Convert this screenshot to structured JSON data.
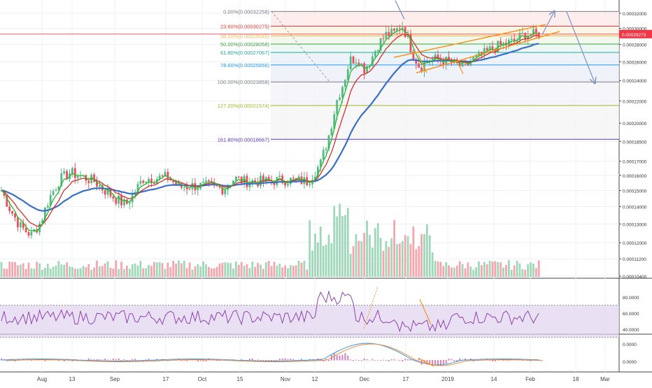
{
  "chart_data": {
    "type": "candlestick",
    "ylim": [
      0.000104,
      0.000322
    ],
    "y_scale": "log",
    "y_ticks": [
      "0.00032000",
      "0.00030000",
      "0.00028000",
      "0.00026000",
      "0.00024000",
      "0.00022000",
      "0.00020000",
      "0.00018500",
      "0.00017000",
      "0.00016000",
      "0.00015000",
      "0.00014000",
      "0.00013000",
      "0.00012000",
      "0.00011200",
      "0.00010400"
    ],
    "x_ticks": [
      "Aug",
      "13",
      "Sep",
      "17",
      "Oct",
      "15",
      "Nov",
      "12",
      "Dec",
      "17",
      "2019",
      "14",
      "Feb",
      "18",
      "Mar"
    ],
    "price_label": "0.00029273",
    "last_price": 0.00029273,
    "fibonacci": [
      {
        "label": "0.00%(0.00032258)",
        "value": 0.00032258,
        "color": "#787b86"
      },
      {
        "label": "23.60%(0.00030275)",
        "value": 0.00030275,
        "color": "#e53935"
      },
      {
        "label": "38.20%(0.00029045)",
        "value": 0.00029045,
        "color": "#f2b94a"
      },
      {
        "label": "50.00%(0.00028058)",
        "value": 0.00028058,
        "color": "#43a047"
      },
      {
        "label": "61.80%(0.00027067)",
        "value": 0.00027067,
        "color": "#26a69a"
      },
      {
        "label": "78.60%(0.00025656)",
        "value": 0.00025656,
        "color": "#2196f3"
      },
      {
        "label": "100.00%(0.00023858)",
        "value": 0.00023858,
        "color": "#787b86"
      },
      {
        "label": "127.20%(0.00021574)",
        "value": 0.00021574,
        "color": "#9cba27"
      },
      {
        "label": "161.80%(0.00018667)",
        "value": 0.00018667,
        "color": "#5e35b1"
      }
    ],
    "rsi_ticks": [
      "80.0000",
      "60.0000",
      "40.0000"
    ],
    "rsi_bounds": [
      70,
      30
    ],
    "macd_ticks": [
      "0.0000",
      "0.0000"
    ],
    "colors": {
      "up": "#53b987",
      "down": "#eb4d5c",
      "ema_fast": "#2eb82e",
      "ema_slow": "#d32f2f",
      "sma_long": "#3a6ec7",
      "rsi": "#8e44ad",
      "rsi_band": "#e1d3ef",
      "macd": "#3399dd",
      "signal": "#f08a3c",
      "trend": "#f7931a",
      "arrow": "#7a90c0",
      "price_line": "#f2596a",
      "price_tag": "#f23645"
    }
  }
}
